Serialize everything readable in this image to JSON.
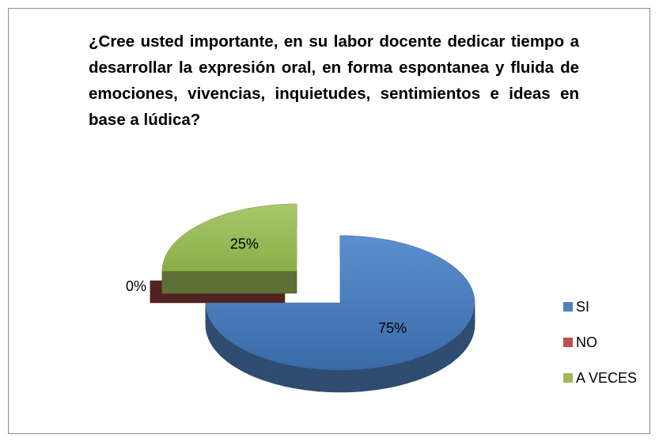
{
  "chart_data": {
    "type": "pie3d",
    "title": "¿Cree usted importante, en su labor docente dedicar tiempo a desarrollar la expresión oral, en forma espontanea y fluida de emociones, vivencias, inquietudes, sentimientos e ideas en base a lúdica?",
    "categories": [
      "SI",
      "NO",
      "A VECES"
    ],
    "values": [
      75,
      0,
      25
    ],
    "value_labels": [
      "75%",
      "0%",
      "25%"
    ],
    "colors": [
      "#4f81bd",
      "#c0504d",
      "#9bbb59"
    ],
    "legend": "right"
  }
}
